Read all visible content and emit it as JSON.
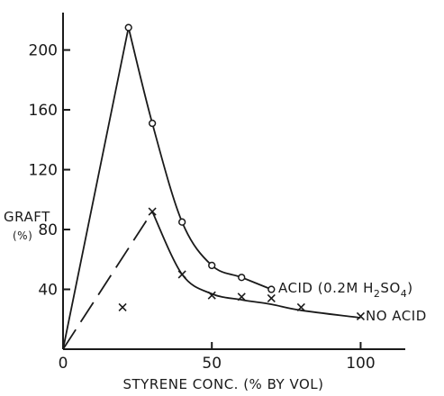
{
  "chart_data": {
    "type": "line",
    "title": "",
    "xlabel": "STYRENE CONC. (% BY VOL)",
    "ylabel_line1": "GRAFT",
    "ylabel_line2": "(%)",
    "xlim": [
      0,
      115
    ],
    "ylim": [
      0,
      225
    ],
    "x_ticks": [
      0,
      50,
      100
    ],
    "y_ticks": [
      40,
      80,
      120,
      160,
      200
    ],
    "grid": false,
    "series": [
      {
        "name": "ACID (0.2M H2SO4)",
        "marker": "circle",
        "x": [
          22,
          30,
          40,
          50,
          60,
          70
        ],
        "y": [
          215,
          151,
          85,
          56,
          48,
          40
        ],
        "curve": {
          "x": [
            0,
            22,
            30,
            40,
            50,
            60,
            70
          ],
          "y": [
            0,
            215,
            151,
            85,
            56,
            48,
            40
          ]
        }
      },
      {
        "name": "NO ACID",
        "marker": "cross",
        "x": [
          20,
          30,
          40,
          50,
          60,
          70,
          80,
          100
        ],
        "y": [
          28,
          92,
          50,
          36,
          35,
          34,
          28,
          22
        ],
        "curve": {
          "x": [
            0,
            30,
            40,
            50,
            60,
            70,
            80,
            100
          ],
          "y": [
            0,
            92,
            50,
            37,
            33,
            30,
            26,
            21
          ]
        }
      }
    ]
  },
  "text": {
    "series_label_acid_prefix": "ACID (0.2M H",
    "series_label_acid_sub1": "2",
    "series_label_acid_mid": "SO",
    "series_label_acid_sub2": "4",
    "series_label_acid_suffix": ")",
    "series_label_noacid": "NO ACID"
  }
}
